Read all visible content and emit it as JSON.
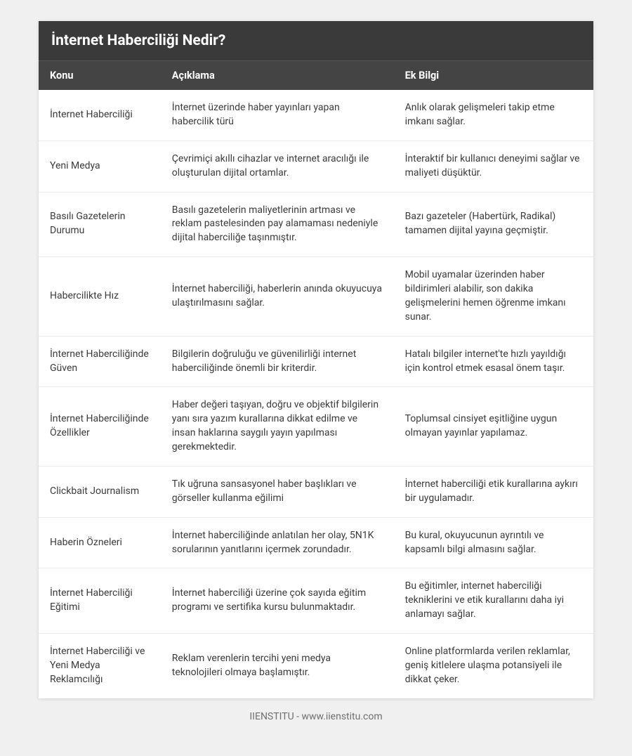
{
  "title": "İnternet Haberciliği Nedir?",
  "columns": [
    "Konu",
    "Açıklama",
    "Ek Bilgi"
  ],
  "rows": [
    [
      "İnternet Haberciliği",
      "İnternet üzerinde haber yayınları yapan habercilik türü",
      "Anlık olarak gelişmeleri takip etme imkanı sağlar."
    ],
    [
      "Yeni Medya",
      "Çevrimiçi akıllı cihazlar ve internet aracılığı ile oluşturulan dijital ortamlar.",
      "İnteraktif bir kullanıcı deneyimi sağlar ve maliyeti düşüktür."
    ],
    [
      "Basılı Gazetelerin Durumu",
      "Basılı gazetelerin maliyetlerinin artması ve reklam pastelesinden pay alamaması nedeniyle dijital haberciliğe taşınmıştır.",
      "Bazı gazeteler (Habertürk, Radikal) tamamen dijital yayına geçmiştir."
    ],
    [
      "Habercilikte Hız",
      "İnternet haberciliği, haberlerin anında okuyucuya ulaştırılmasını sağlar.",
      "Mobil uyamalar üzerinden haber bildirimleri alabilir, son dakika gelişmelerini hemen öğrenme imkanı sunar."
    ],
    [
      "İnternet Haberciliğinde Güven",
      "Bilgilerin doğruluğu ve güvenilirliği internet haberciliğinde önemli bir kriterdir.",
      "Hatalı bilgiler internet'te hızlı yayıldığı için kontrol etmek esasal önem taşır."
    ],
    [
      "İnternet Haberciliğinde Özellikler",
      "Haber değeri taşıyan, doğru ve objektif bilgilerin yanı sıra yazım kurallarına dikkat edilme ve insan haklarına saygılı yayın yapılması gerekmektedir.",
      "Toplumsal cinsiyet eşitliğine uygun olmayan yayınlar yapılamaz."
    ],
    [
      "Clickbait Journalism",
      "Tık uğruna sansasyonel haber başlıkları ve görseller kullanma eğilimi",
      "İnternet haberciliği etik kurallarına aykırı bir uygulamadır."
    ],
    [
      "Haberin Özneleri",
      "İnternet haberciliğinde anlatılan her olay, 5N1K sorularının yanıtlarını içermek zorundadır.",
      "Bu kural, okuyucunun ayrıntılı ve kapsamlı bilgi almasını sağlar."
    ],
    [
      "İnternet Haberciliği Eğitimi",
      "İnternet haberciliği üzerine çok sayıda eğitim programı ve sertifika kursu bulunmaktadır.",
      "Bu eğitimler, internet haberciliği tekniklerini ve etik kurallarını daha iyi anlamayı sağlar."
    ],
    [
      "İnternet Haberciliği ve Yeni Medya Reklamcılığı",
      "Reklam verenlerin tercihi yeni medya teknolojileri olmaya başlamıştır.",
      "Online platformlarda verilen reklamlar, geniş kitlelere ulaşma potansiyeli ile dikkat çeker."
    ]
  ],
  "footer": "IIENSTITU - www.iienstitu.com",
  "style": {
    "page_bg": "#f0f0f0",
    "card_bg": "#ffffff",
    "title_bg": "#3a3a3a",
    "header_bg": "#444444",
    "header_text": "#ffffff",
    "body_text": "#3b3b3b",
    "row_border": "#ececec",
    "footer_text": "#6f6f6f",
    "title_fontsize": 21,
    "header_fontsize": 14.5,
    "cell_fontsize": 14,
    "column_widths_pct": [
      22,
      42,
      36
    ]
  }
}
